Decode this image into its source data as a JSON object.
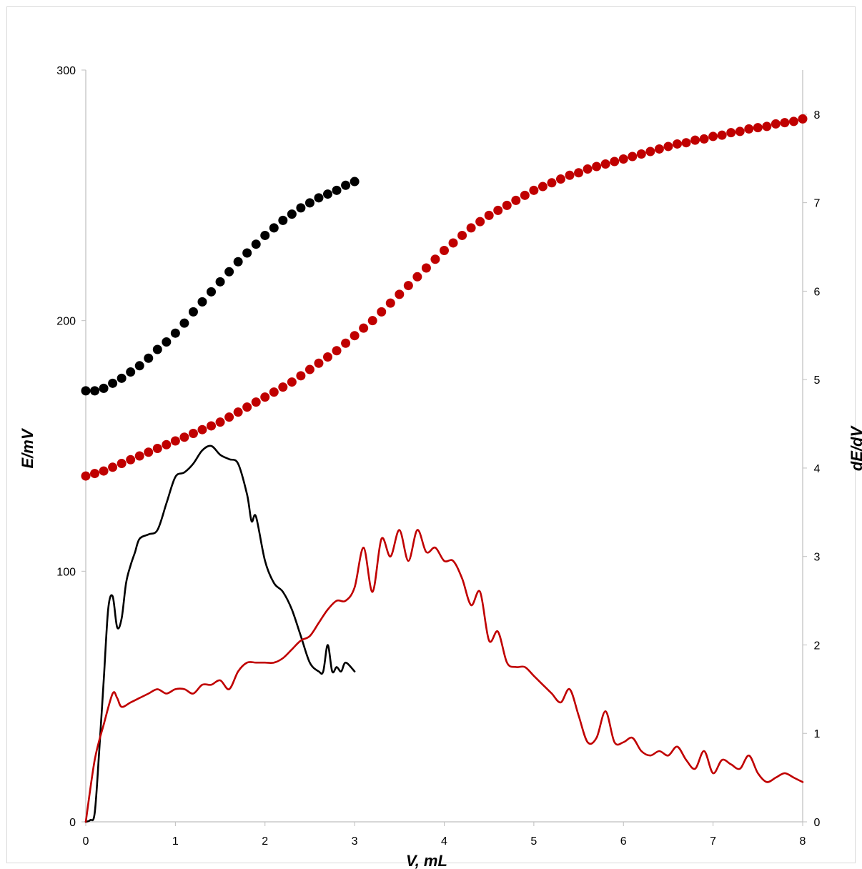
{
  "chart_data": {
    "type": "scatter",
    "title": "",
    "xlabel": "V, mL",
    "ylabel_left": "E/mV",
    "ylabel_right": "dE/dV",
    "xlim": [
      0,
      8
    ],
    "ylim_left": [
      0,
      300
    ],
    "ylim_right": [
      0,
      8.5
    ],
    "xticks": [
      0,
      1,
      2,
      3,
      4,
      5,
      6,
      7,
      8
    ],
    "yticks_left": [
      0,
      100,
      200,
      300
    ],
    "yticks_right": [
      0,
      1,
      2,
      3,
      4,
      5,
      6,
      7,
      8
    ],
    "grid": false,
    "legend": "none",
    "colors": {
      "black": "#000000",
      "red": "#c00000",
      "axis": "#bfbfbf"
    },
    "series": [
      {
        "kind": "points",
        "axis": "left",
        "color": "#000000",
        "x": [
          0,
          0.1,
          0.2,
          0.3,
          0.4,
          0.5,
          0.6,
          0.7,
          0.8,
          0.9,
          1.0,
          1.1,
          1.2,
          1.3,
          1.4,
          1.5,
          1.6,
          1.7,
          1.8,
          1.9,
          2.0,
          2.1,
          2.2,
          2.3,
          2.4,
          2.5,
          2.6,
          2.7,
          2.8,
          2.9,
          3.0
        ],
        "y": [
          172,
          172,
          173,
          175,
          177,
          179.5,
          182,
          185,
          188.5,
          191.5,
          195,
          199,
          203.5,
          207.5,
          211.5,
          215.5,
          219.5,
          223.5,
          227,
          230.5,
          234,
          237,
          240,
          242.5,
          245,
          247,
          249,
          250.5,
          252,
          254,
          255.5
        ]
      },
      {
        "kind": "points",
        "axis": "left",
        "color": "#c00000",
        "x": [
          0,
          0.1,
          0.2,
          0.3,
          0.4,
          0.5,
          0.6,
          0.7,
          0.8,
          0.9,
          1.0,
          1.1,
          1.2,
          1.3,
          1.4,
          1.5,
          1.6,
          1.7,
          1.8,
          1.9,
          2.0,
          2.1,
          2.2,
          2.3,
          2.4,
          2.5,
          2.6,
          2.7,
          2.8,
          2.9,
          3.0,
          3.1,
          3.2,
          3.3,
          3.4,
          3.5,
          3.6,
          3.7,
          3.8,
          3.9,
          4.0,
          4.1,
          4.2,
          4.3,
          4.4,
          4.5,
          4.6,
          4.7,
          4.8,
          4.9,
          5.0,
          5.1,
          5.2,
          5.3,
          5.4,
          5.5,
          5.6,
          5.7,
          5.8,
          5.9,
          6.0,
          6.1,
          6.2,
          6.3,
          6.4,
          6.5,
          6.6,
          6.7,
          6.8,
          6.9,
          7.0,
          7.1,
          7.2,
          7.3,
          7.4,
          7.5,
          7.6,
          7.7,
          7.8,
          7.9,
          8.0
        ],
        "y": [
          138,
          139,
          140,
          141.5,
          143,
          144.5,
          146,
          147.5,
          149,
          150.5,
          152,
          153.5,
          155,
          156.5,
          158,
          159.5,
          161.5,
          163.5,
          165.5,
          167.5,
          169.5,
          171.5,
          173.5,
          175.5,
          178,
          180.5,
          183,
          185.5,
          188,
          191,
          194,
          197,
          200,
          203.5,
          207,
          210.5,
          214,
          217.5,
          221,
          224.5,
          228,
          231,
          234,
          237,
          239.5,
          242,
          244,
          246,
          248,
          250,
          252,
          253.5,
          255,
          256.5,
          258,
          259,
          260.5,
          261.5,
          262.5,
          263.5,
          264.5,
          265.5,
          266.5,
          267.5,
          268.5,
          269.5,
          270.5,
          271,
          272,
          272.5,
          273.5,
          274,
          275,
          275.5,
          276.5,
          277,
          277.5,
          278.5,
          279,
          279.5,
          280.5
        ]
      },
      {
        "kind": "line",
        "axis": "right",
        "color": "#000000",
        "x": [
          0,
          0.05,
          0.1,
          0.15,
          0.2,
          0.25,
          0.3,
          0.35,
          0.4,
          0.45,
          0.5,
          0.55,
          0.6,
          0.7,
          0.8,
          0.9,
          1.0,
          1.1,
          1.2,
          1.3,
          1.4,
          1.5,
          1.6,
          1.7,
          1.8,
          1.85,
          1.9,
          2.0,
          2.1,
          2.2,
          2.3,
          2.4,
          2.5,
          2.6,
          2.65,
          2.7,
          2.75,
          2.8,
          2.85,
          2.9,
          3.0
        ],
        "y": [
          0,
          0.02,
          0.1,
          0.8,
          1.6,
          2.4,
          2.55,
          2.2,
          2.3,
          2.7,
          2.9,
          3.05,
          3.2,
          3.25,
          3.3,
          3.6,
          3.9,
          3.95,
          4.05,
          4.2,
          4.25,
          4.15,
          4.1,
          4.05,
          3.7,
          3.4,
          3.45,
          2.95,
          2.7,
          2.6,
          2.4,
          2.1,
          1.8,
          1.7,
          1.7,
          2.0,
          1.7,
          1.75,
          1.7,
          1.8,
          1.7
        ]
      },
      {
        "kind": "line",
        "axis": "right",
        "color": "#c00000",
        "x": [
          0,
          0.1,
          0.2,
          0.3,
          0.35,
          0.4,
          0.5,
          0.6,
          0.7,
          0.8,
          0.9,
          1.0,
          1.1,
          1.2,
          1.3,
          1.4,
          1.5,
          1.6,
          1.7,
          1.8,
          1.9,
          2.0,
          2.1,
          2.2,
          2.3,
          2.4,
          2.5,
          2.6,
          2.7,
          2.8,
          2.9,
          3.0,
          3.1,
          3.2,
          3.3,
          3.4,
          3.5,
          3.6,
          3.7,
          3.8,
          3.9,
          4.0,
          4.1,
          4.2,
          4.3,
          4.4,
          4.5,
          4.6,
          4.7,
          4.8,
          4.9,
          5.0,
          5.1,
          5.2,
          5.3,
          5.4,
          5.5,
          5.6,
          5.7,
          5.8,
          5.9,
          6.0,
          6.1,
          6.2,
          6.3,
          6.4,
          6.5,
          6.6,
          6.7,
          6.8,
          6.9,
          7.0,
          7.1,
          7.2,
          7.3,
          7.4,
          7.5,
          7.6,
          7.7,
          7.8,
          7.9,
          8.0
        ],
        "y": [
          0,
          0.7,
          1.1,
          1.45,
          1.4,
          1.3,
          1.35,
          1.4,
          1.45,
          1.5,
          1.45,
          1.5,
          1.5,
          1.45,
          1.55,
          1.55,
          1.6,
          1.5,
          1.7,
          1.8,
          1.8,
          1.8,
          1.8,
          1.85,
          1.95,
          2.05,
          2.1,
          2.25,
          2.4,
          2.5,
          2.5,
          2.65,
          3.1,
          2.6,
          3.2,
          3.0,
          3.3,
          2.95,
          3.3,
          3.05,
          3.1,
          2.95,
          2.95,
          2.75,
          2.45,
          2.6,
          2.05,
          2.15,
          1.8,
          1.75,
          1.75,
          1.65,
          1.55,
          1.45,
          1.35,
          1.5,
          1.2,
          0.9,
          0.95,
          1.25,
          0.9,
          0.9,
          0.95,
          0.8,
          0.75,
          0.8,
          0.75,
          0.85,
          0.7,
          0.6,
          0.8,
          0.55,
          0.7,
          0.65,
          0.6,
          0.75,
          0.55,
          0.45,
          0.5,
          0.55,
          0.5,
          0.45
        ]
      }
    ]
  }
}
